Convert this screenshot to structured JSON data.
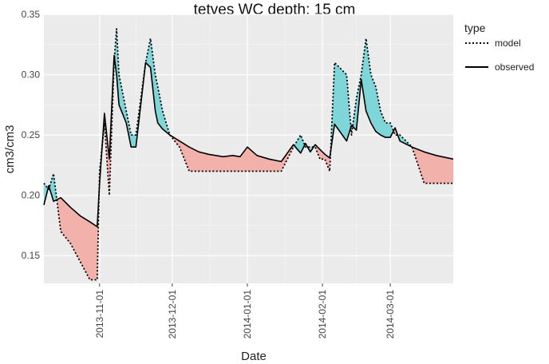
{
  "chart_data": {
    "type": "line",
    "title": "tetves WC depth: 15 cm",
    "xlabel": "Date",
    "ylabel": "cm3/cm3",
    "xlim": [
      "2013-10-09",
      "2014-03-27"
    ],
    "ylim": [
      0.127,
      0.35
    ],
    "x_ticks": [
      "2013-11-01",
      "2013-12-01",
      "2014-01-01",
      "2014-02-01",
      "2014-03-01"
    ],
    "y_ticks": [
      0.15,
      0.2,
      0.25,
      0.3,
      0.35
    ],
    "y_tick_labels": [
      "0.15",
      "0.20",
      "0.25",
      "0.30",
      "0.35"
    ],
    "grid": true,
    "legend": {
      "title": "type",
      "position": "right",
      "entries": [
        {
          "label": "model",
          "line": "dotted"
        },
        {
          "label": "observed",
          "line": "solid"
        }
      ]
    },
    "fill_colors": {
      "model_above": "#7fd6d8",
      "model_below": "#f2b1ab"
    },
    "colors": {
      "panel": "#ebebeb",
      "grid": "#ffffff",
      "line": "#000000"
    },
    "x": [
      "2013-10-09",
      "2013-10-11",
      "2013-10-13",
      "2013-10-16",
      "2013-10-20",
      "2013-10-24",
      "2013-10-28",
      "2013-10-31",
      "2013-11-01",
      "2013-11-03",
      "2013-11-05",
      "2013-11-07",
      "2013-11-08",
      "2013-11-09",
      "2013-11-12",
      "2013-11-14",
      "2013-11-16",
      "2013-11-20",
      "2013-11-22",
      "2013-11-24",
      "2013-11-25",
      "2013-11-27",
      "2013-11-30",
      "2013-12-04",
      "2013-12-08",
      "2013-12-12",
      "2013-12-16",
      "2013-12-22",
      "2013-12-26",
      "2013-12-29",
      "2014-01-01",
      "2014-01-05",
      "2014-01-10",
      "2014-01-15",
      "2014-01-20",
      "2014-01-23",
      "2014-01-25",
      "2014-01-27",
      "2014-01-29",
      "2014-01-31",
      "2014-02-02",
      "2014-02-04",
      "2014-02-06",
      "2014-02-11",
      "2014-02-13",
      "2014-02-15",
      "2014-02-17",
      "2014-02-19",
      "2014-02-21",
      "2014-02-23",
      "2014-02-25",
      "2014-02-27",
      "2014-03-01",
      "2014-03-03",
      "2014-03-05",
      "2014-03-10",
      "2014-03-15",
      "2014-03-20",
      "2014-03-27"
    ],
    "series": [
      {
        "name": "model",
        "line": "dotted",
        "values": [
          0.21,
          0.205,
          0.218,
          0.17,
          0.16,
          0.145,
          0.13,
          0.13,
          0.22,
          0.26,
          0.2,
          0.31,
          0.338,
          0.3,
          0.27,
          0.25,
          0.25,
          0.31,
          0.33,
          0.3,
          0.29,
          0.27,
          0.25,
          0.24,
          0.22,
          0.22,
          0.22,
          0.22,
          0.22,
          0.22,
          0.22,
          0.22,
          0.22,
          0.22,
          0.24,
          0.25,
          0.24,
          0.24,
          0.24,
          0.23,
          0.23,
          0.22,
          0.31,
          0.3,
          0.25,
          0.28,
          0.3,
          0.33,
          0.3,
          0.29,
          0.27,
          0.26,
          0.26,
          0.25,
          0.25,
          0.24,
          0.21,
          0.21,
          0.21
        ]
      },
      {
        "name": "observed",
        "line": "solid",
        "values": [
          0.192,
          0.208,
          0.195,
          0.198,
          0.19,
          0.183,
          0.178,
          0.174,
          0.21,
          0.268,
          0.23,
          0.316,
          0.3,
          0.275,
          0.26,
          0.24,
          0.24,
          0.31,
          0.306,
          0.27,
          0.26,
          0.255,
          0.25,
          0.245,
          0.24,
          0.236,
          0.234,
          0.232,
          0.233,
          0.232,
          0.24,
          0.233,
          0.23,
          0.228,
          0.242,
          0.235,
          0.243,
          0.236,
          0.242,
          0.238,
          0.234,
          0.231,
          0.259,
          0.245,
          0.258,
          0.254,
          0.296,
          0.27,
          0.26,
          0.253,
          0.25,
          0.248,
          0.248,
          0.256,
          0.245,
          0.24,
          0.236,
          0.233,
          0.23
        ]
      }
    ]
  }
}
